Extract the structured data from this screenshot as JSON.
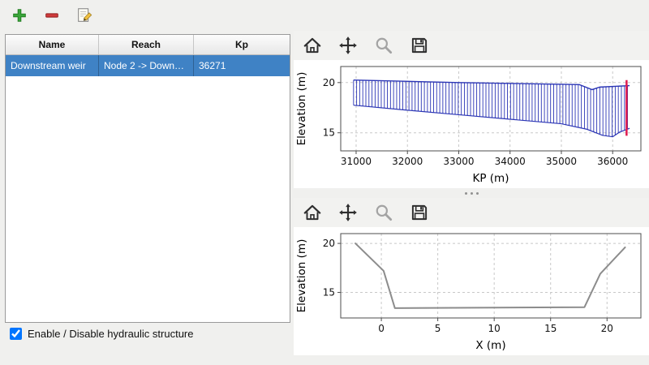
{
  "main_toolbar": {
    "icons": [
      {
        "name": "add",
        "shape": "plus",
        "color": "#3aa53a"
      },
      {
        "name": "remove",
        "shape": "minus",
        "color": "#cf3b3b"
      },
      {
        "name": "edit",
        "shape": "page-pencil",
        "color": "#f0c040"
      }
    ]
  },
  "table": {
    "columns": [
      "Name",
      "Reach",
      "Kp"
    ],
    "rows": [
      {
        "cells": [
          "Downstream weir",
          "Node 2 -> Down…",
          "36271"
        ],
        "selected": true
      }
    ],
    "selection_color": "#3f82c5"
  },
  "checkbox": {
    "label": "Enable / Disable hydraulic structure",
    "checked": true
  },
  "plot_toolbar": {
    "icons": [
      "home",
      "pan",
      "zoom",
      "save"
    ]
  },
  "chart_data": [
    {
      "type": "area",
      "title": "",
      "xlabel": "KP (m)",
      "ylabel": "Elevation (m)",
      "xlim": [
        30700,
        36550
      ],
      "ylim": [
        13.2,
        21.6
      ],
      "xticks": [
        31000,
        32000,
        33000,
        34000,
        35000,
        36000
      ],
      "yticks": [
        15,
        20
      ],
      "grid": true,
      "series": [
        {
          "name": "channel-band",
          "style": "hatch-vertical",
          "color": "#2b35b5",
          "hatch_step": 60,
          "top": [
            [
              30950,
              20.25
            ],
            [
              33000,
              20.0
            ],
            [
              35350,
              19.8
            ],
            [
              35600,
              19.3
            ],
            [
              35750,
              19.55
            ],
            [
              36330,
              19.7
            ]
          ],
          "bottom": [
            [
              30950,
              17.75
            ],
            [
              32000,
              17.25
            ],
            [
              33000,
              16.8
            ],
            [
              34000,
              16.35
            ],
            [
              35000,
              15.9
            ],
            [
              35500,
              15.35
            ],
            [
              35800,
              14.75
            ],
            [
              36000,
              14.6
            ],
            [
              36130,
              15.05
            ],
            [
              36330,
              15.45
            ]
          ]
        }
      ],
      "markers": [
        {
          "name": "selected-structure-kp",
          "x": 36271,
          "y0": 14.7,
          "y1": 20.25,
          "color": "#e01a4f",
          "width": 2.5
        }
      ]
    },
    {
      "type": "line",
      "title": "",
      "xlabel": "X (m)",
      "ylabel": "Elevation (m)",
      "xlim": [
        -3.6,
        23.0
      ],
      "ylim": [
        12.4,
        21.0
      ],
      "xticks": [
        0,
        5,
        10,
        15,
        20
      ],
      "yticks": [
        15,
        20
      ],
      "grid": true,
      "series": [
        {
          "name": "cross-section",
          "style": "line",
          "color": "#8c8c8c",
          "width": 2,
          "points": [
            [
              -2.3,
              20.0
            ],
            [
              0.2,
              17.2
            ],
            [
              1.2,
              13.4
            ],
            [
              18.0,
              13.5
            ],
            [
              19.4,
              16.9
            ],
            [
              21.6,
              19.6
            ]
          ]
        }
      ],
      "markers": []
    }
  ]
}
